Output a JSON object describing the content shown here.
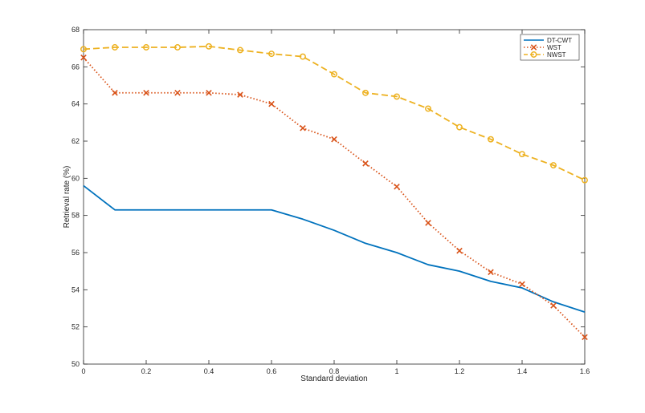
{
  "chart_data": {
    "type": "line",
    "title": "",
    "xlabel": "Standard deviation",
    "ylabel": "Retrieval rate (%)",
    "xlim": [
      0,
      1.6
    ],
    "ylim": [
      50,
      68
    ],
    "x_ticks": [
      "0",
      "0.2",
      "0.4",
      "0.6",
      "0.8",
      "1",
      "1.2",
      "1.4",
      "1.6"
    ],
    "y_ticks": [
      "50",
      "52",
      "54",
      "56",
      "58",
      "60",
      "62",
      "64",
      "66",
      "68"
    ],
    "grid": false,
    "legend_position": "top-right",
    "x": [
      0,
      0.1,
      0.2,
      0.3,
      0.4,
      0.5,
      0.6,
      0.7,
      0.8,
      0.9,
      1.0,
      1.1,
      1.2,
      1.3,
      1.4,
      1.5,
      1.6
    ],
    "series": [
      {
        "name": "DT-CWT",
        "color": "#0072BD",
        "line_style": "solid",
        "marker": "none",
        "values": [
          59.6,
          58.3,
          58.3,
          58.3,
          58.3,
          58.3,
          58.3,
          57.8,
          57.2,
          56.5,
          56.0,
          55.35,
          55.0,
          54.45,
          54.1,
          53.35,
          52.8
        ]
      },
      {
        "name": "WST",
        "color": "#D95319",
        "line_style": "dotted",
        "marker": "x",
        "values": [
          66.5,
          64.6,
          64.6,
          64.6,
          64.6,
          64.5,
          64.0,
          62.7,
          62.1,
          60.8,
          59.55,
          57.6,
          56.1,
          54.95,
          54.3,
          53.15,
          51.45
        ]
      },
      {
        "name": "NWST",
        "color": "#EDB120",
        "line_style": "dashed",
        "marker": "o",
        "values": [
          66.95,
          67.05,
          67.05,
          67.05,
          67.1,
          66.9,
          66.7,
          66.55,
          65.6,
          64.6,
          64.4,
          63.75,
          62.75,
          62.1,
          61.3,
          60.7,
          59.9
        ]
      }
    ]
  }
}
